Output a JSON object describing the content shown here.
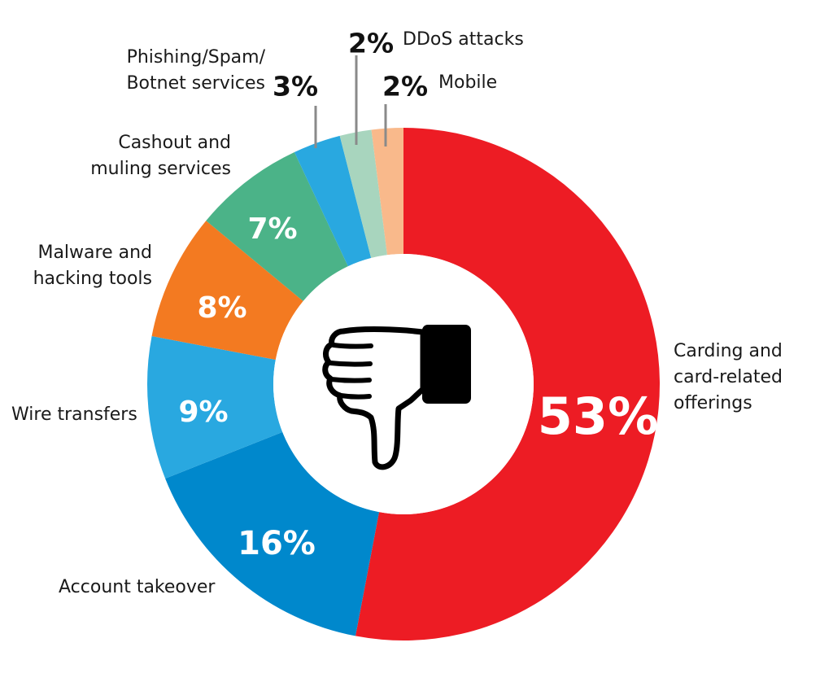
{
  "chart_data": {
    "type": "pie",
    "donut": true,
    "center_icon": "thumbs-down-icon",
    "slices": [
      {
        "value": 53,
        "value_label": "53%",
        "label_lines": [
          "Carding and",
          "card-related",
          "offerings"
        ],
        "color": "#ED1C24"
      },
      {
        "value": 16,
        "value_label": "16%",
        "label_lines": [
          "Account takeover"
        ],
        "color": "#0088CC"
      },
      {
        "value": 9,
        "value_label": "9%",
        "label_lines": [
          "Wire transfers"
        ],
        "color": "#29A8E0"
      },
      {
        "value": 8,
        "value_label": "8%",
        "label_lines": [
          "Malware and",
          "hacking tools"
        ],
        "color": "#F37A21"
      },
      {
        "value": 7,
        "value_label": "7%",
        "label_lines": [
          "Cashout and",
          "muling services"
        ],
        "color": "#4BB388"
      },
      {
        "value": 3,
        "value_label": "3%",
        "label_lines": [
          "Phishing/Spam/",
          "Botnet services"
        ],
        "color": "#29A8E0"
      },
      {
        "value": 2,
        "value_label": "2%",
        "label_lines": [
          "DDoS attacks"
        ],
        "color": "#A8D5BE"
      },
      {
        "value": 2,
        "value_label": "2%",
        "label_lines": [
          "Mobile"
        ],
        "color": "#F9B98B"
      }
    ]
  }
}
